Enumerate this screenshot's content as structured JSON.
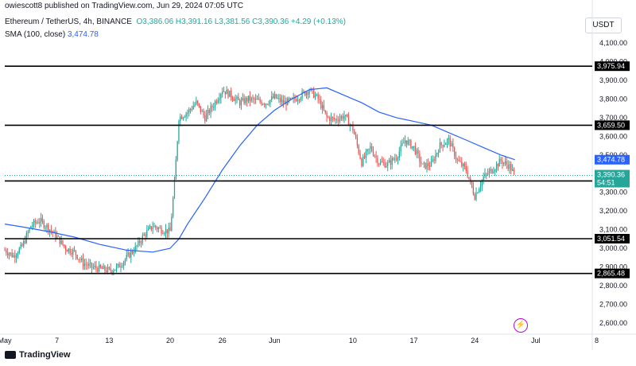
{
  "header": {
    "published_by": "owiescott8 published on TradingView.com, Jun 29, 2024 07:05 UTC"
  },
  "legend": {
    "symbol": "Ethereum / TetherUS, 4h, BINANCE",
    "ohlc": "O3,386.06  H3,391.16  L3,381.56  C3,390.36  +4.29 (+0.13%)",
    "sma_label": "SMA (100, close)",
    "sma_value": "3,474.78"
  },
  "currency": "USDT",
  "footer": {
    "brand": "TradingView"
  },
  "icons": {
    "replay": "lightning-icon",
    "logo": "tradingview-logo-icon"
  },
  "colors": {
    "up": "#26a69a",
    "down": "#ef5350",
    "sma": "#2962ff",
    "level": "#000000"
  },
  "chart_data": {
    "type": "candlestick",
    "title": "Ethereum / TetherUS, 4h, BINANCE",
    "ylim": [
      2540,
      4160
    ],
    "y_ticks": [
      2600,
      2700,
      2800,
      2900,
      3000,
      3100,
      3200,
      3300,
      3400,
      3500,
      3600,
      3700,
      3800,
      3900,
      4000,
      4100
    ],
    "y_tick_labels": [
      "2,600.00",
      "2,700.00",
      "2,800.00",
      "2,900.00",
      "3,000.00",
      "3,100.00",
      "3,200.00",
      "3,300.00",
      "3,400.00",
      "3,500.00",
      "3,600.00",
      "3,700.00",
      "3,800.00",
      "3,900.00",
      "4,000.00",
      "4,100.00"
    ],
    "x_ticks": [
      "May",
      "7",
      "13",
      "20",
      "26",
      "Jun",
      "10",
      "17",
      "24",
      "Jul",
      "8"
    ],
    "x_tick_days": [
      1,
      7,
      13,
      20,
      26,
      32,
      41,
      48,
      55,
      62,
      69
    ],
    "x_range_days": [
      1,
      68.5
    ],
    "horizontal_levels": [
      {
        "value": 3975.94,
        "label": "3,975.94"
      },
      {
        "value": 3659.5,
        "label": "3,659.50"
      },
      {
        "value": 3360.72,
        "label": "3,360.72"
      },
      {
        "value": 3051.54,
        "label": "3,051.54"
      },
      {
        "value": 2865.48,
        "label": "2,865.48"
      }
    ],
    "price_path_days": [
      1,
      2,
      3,
      4,
      5,
      6,
      7,
      8,
      9,
      10,
      11,
      12,
      13,
      14,
      15,
      16,
      17,
      18,
      19,
      20,
      20.5,
      21,
      22,
      23,
      24,
      25,
      26,
      27,
      28,
      29,
      30,
      31,
      32,
      33,
      34,
      35,
      36,
      37,
      38,
      39,
      40,
      41,
      42,
      43,
      44,
      45,
      46,
      47,
      48,
      49,
      50,
      51,
      52,
      53,
      54,
      55,
      56,
      57,
      58,
      59,
      59.6
    ],
    "price_path": [
      2990,
      2960,
      3010,
      3120,
      3150,
      3110,
      3060,
      3000,
      2980,
      2920,
      2900,
      2890,
      2880,
      2900,
      2950,
      3000,
      3070,
      3120,
      3100,
      3090,
      3350,
      3700,
      3730,
      3780,
      3700,
      3770,
      3850,
      3820,
      3780,
      3800,
      3790,
      3780,
      3810,
      3780,
      3790,
      3820,
      3850,
      3800,
      3700,
      3690,
      3710,
      3640,
      3460,
      3540,
      3460,
      3450,
      3490,
      3580,
      3540,
      3440,
      3450,
      3550,
      3580,
      3470,
      3420,
      3280,
      3380,
      3420,
      3470,
      3440,
      3390.36
    ],
    "sma_path_days": [
      1,
      3,
      6,
      9,
      12,
      15,
      18,
      20,
      21,
      22,
      24,
      26,
      28,
      30,
      32,
      34,
      36,
      38,
      40,
      42,
      44,
      46,
      48,
      50,
      52,
      54,
      56,
      58,
      59.6
    ],
    "sma_path": [
      3130,
      3115,
      3090,
      3060,
      3020,
      2990,
      2980,
      3000,
      3050,
      3130,
      3270,
      3420,
      3550,
      3660,
      3740,
      3800,
      3850,
      3860,
      3820,
      3780,
      3730,
      3700,
      3680,
      3660,
      3620,
      3580,
      3540,
      3500,
      3474.78
    ],
    "last_price": {
      "value": 3390.36,
      "label": "3,390.36",
      "countdown": "54:51"
    },
    "sma_last": {
      "value": 3474.78,
      "label": "3,474.78"
    }
  }
}
